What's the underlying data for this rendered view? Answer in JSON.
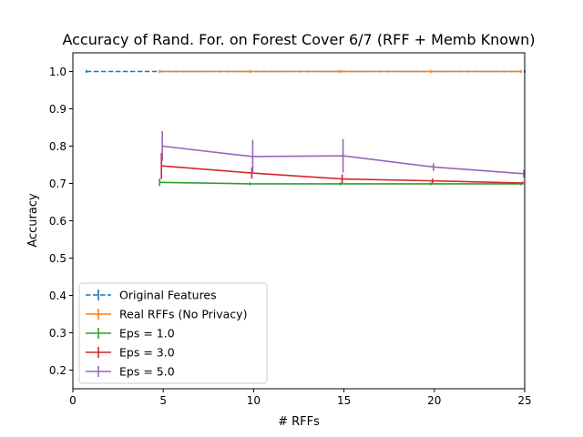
{
  "chart_data": {
    "type": "line",
    "title": "Accuracy of Rand. For. on Forest Cover 6/7 (RFF + Memb Known)",
    "xlabel": "# RFFs",
    "ylabel": "Accuracy",
    "xlim": [
      0,
      25
    ],
    "ylim": [
      0.15,
      1.05
    ],
    "xticks": [
      0,
      5,
      10,
      15,
      20,
      25
    ],
    "xtick_labels": [
      "0",
      "5",
      "10",
      "15",
      "20",
      "25"
    ],
    "yticks": [
      0.2,
      0.3,
      0.4,
      0.5,
      0.6,
      0.7,
      0.8,
      0.9,
      1.0
    ],
    "ytick_labels": [
      "0.2",
      "0.3",
      "0.4",
      "0.5",
      "0.6",
      "0.7",
      "0.8",
      "0.9",
      "1.0"
    ],
    "grid": false,
    "legend_position": "lower-left",
    "series": [
      {
        "name": "Original Features",
        "color": "#1f77b4",
        "dashed": true,
        "x": [
          0.75,
          25
        ],
        "y": [
          1.0,
          1.0
        ],
        "err": [
          0,
          0
        ]
      },
      {
        "name": "Real RFFs (No Privacy)",
        "color": "#ff7f0e",
        "dashed": false,
        "x": [
          4.8,
          9.8,
          14.8,
          19.8,
          24.8
        ],
        "y": [
          1.0,
          1.0,
          1.0,
          1.0,
          1.0
        ],
        "err": [
          0,
          0,
          0,
          0,
          0
        ]
      },
      {
        "name": "Eps = 1.0",
        "color": "#2ca02c",
        "dashed": false,
        "x": [
          4.8,
          9.8,
          14.8,
          19.8,
          24.8
        ],
        "y": [
          0.703,
          0.699,
          0.699,
          0.699,
          0.699
        ],
        "err": [
          0.01,
          0.002,
          0.002,
          0.002,
          0.002
        ]
      },
      {
        "name": "Eps = 3.0",
        "color": "#d62728",
        "dashed": false,
        "x": [
          4.9,
          9.9,
          14.9,
          19.9,
          24.9
        ],
        "y": [
          0.747,
          0.728,
          0.712,
          0.707,
          0.701
        ],
        "err": [
          0.035,
          0.015,
          0.012,
          0.006,
          0.003
        ]
      },
      {
        "name": "Eps = 5.0",
        "color": "#9467bd",
        "dashed": false,
        "x": [
          4.95,
          9.95,
          14.95,
          19.95,
          24.95
        ],
        "y": [
          0.8,
          0.772,
          0.774,
          0.744,
          0.726
        ],
        "err": [
          0.04,
          0.045,
          0.045,
          0.01,
          0.01
        ]
      }
    ]
  }
}
